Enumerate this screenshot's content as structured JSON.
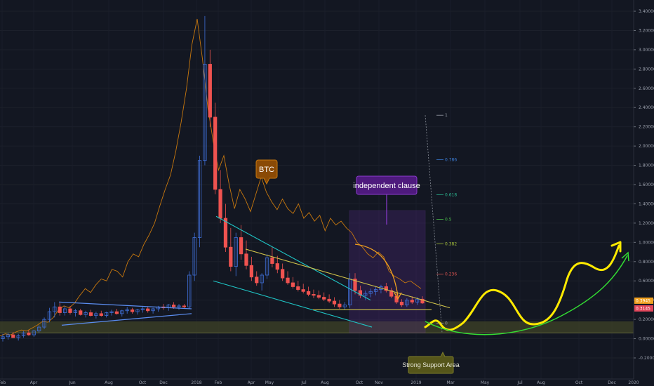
{
  "chart_data": {
    "type": "candlestick",
    "x_axis": {
      "ticks": [
        "Feb",
        "Apr",
        "Jun",
        "Aug",
        "Oct",
        "Dec",
        "2018",
        "Feb",
        "Apr",
        "May",
        "Jul",
        "Aug",
        "Oct",
        "Nov",
        "2019",
        "Mar",
        "May",
        "Jul",
        "Aug",
        "Oct",
        "Dec",
        "2020"
      ]
    },
    "y_axis": {
      "ticks": [
        "3.40000",
        "3.20000",
        "3.00000",
        "2.80000",
        "2.60000",
        "2.40000",
        "2.20000",
        "2.00000",
        "1.80000",
        "1.60000",
        "1.40000",
        "1.20000",
        "1.00000",
        "0.80000",
        "0.60000",
        "0.40000",
        "0.20000",
        "0.00000",
        "-0.20000"
      ],
      "range": [
        -0.24,
        3.45
      ],
      "price_badges": [
        {
          "label": "0.3945",
          "value": 0.3945,
          "color": "#f0a020"
        },
        {
          "label": "0.3145",
          "value": 0.3145,
          "color": "#e0455a"
        }
      ]
    },
    "fibonacci": {
      "levels": [
        {
          "label": "1",
          "ratio": 1,
          "color": "#9aa0aa"
        },
        {
          "label": "0.786",
          "ratio": 0.786,
          "color": "#3d7fd9"
        },
        {
          "label": "0.618",
          "ratio": 0.618,
          "color": "#2bb38e"
        },
        {
          "label": "0.5",
          "ratio": 0.5,
          "color": "#4cc04c"
        },
        {
          "label": "0.382",
          "ratio": 0.382,
          "color": "#a6c23a"
        },
        {
          "label": "0.236",
          "ratio": 0.236,
          "color": "#d9534f"
        },
        {
          "label": "0",
          "ratio": 0,
          "color": "#9aa0aa"
        }
      ],
      "price_range": [
        0.16,
        2.32
      ]
    },
    "annotations": [
      {
        "label": "BTC",
        "color": "#c8780e"
      },
      {
        "label": "independent clause",
        "color": "#7d2fb4"
      },
      {
        "label": "Strong Support Area",
        "color": "#6b6b1e"
      }
    ],
    "colors": {
      "background": "#131722",
      "up": "#3f6fd8",
      "down": "#ef5350",
      "btc_line": "#c8780e",
      "projection": "#ffea00",
      "arrow": "#33dd33",
      "support_band": "#3a3d26"
    },
    "candles": [
      {
        "o": 0.0,
        "h": 0.05,
        "l": -0.03,
        "c": 0.02
      },
      {
        "o": 0.02,
        "h": 0.06,
        "l": -0.01,
        "c": 0.04
      },
      {
        "o": 0.04,
        "h": 0.07,
        "l": 0.01,
        "c": 0.01
      },
      {
        "o": 0.01,
        "h": 0.05,
        "l": -0.02,
        "c": 0.03
      },
      {
        "o": 0.03,
        "h": 0.08,
        "l": 0.01,
        "c": 0.06
      },
      {
        "o": 0.06,
        "h": 0.09,
        "l": 0.03,
        "c": 0.04
      },
      {
        "o": 0.04,
        "h": 0.09,
        "l": 0.02,
        "c": 0.08
      },
      {
        "o": 0.08,
        "h": 0.14,
        "l": 0.06,
        "c": 0.12
      },
      {
        "o": 0.12,
        "h": 0.22,
        "l": 0.1,
        "c": 0.2
      },
      {
        "o": 0.2,
        "h": 0.32,
        "l": 0.17,
        "c": 0.28
      },
      {
        "o": 0.28,
        "h": 0.38,
        "l": 0.22,
        "c": 0.33
      },
      {
        "o": 0.33,
        "h": 0.37,
        "l": 0.24,
        "c": 0.27
      },
      {
        "o": 0.27,
        "h": 0.34,
        "l": 0.24,
        "c": 0.31
      },
      {
        "o": 0.31,
        "h": 0.34,
        "l": 0.25,
        "c": 0.27
      },
      {
        "o": 0.27,
        "h": 0.31,
        "l": 0.23,
        "c": 0.29
      },
      {
        "o": 0.29,
        "h": 0.31,
        "l": 0.24,
        "c": 0.25
      },
      {
        "o": 0.25,
        "h": 0.29,
        "l": 0.22,
        "c": 0.27
      },
      {
        "o": 0.27,
        "h": 0.3,
        "l": 0.23,
        "c": 0.24
      },
      {
        "o": 0.24,
        "h": 0.28,
        "l": 0.21,
        "c": 0.26
      },
      {
        "o": 0.26,
        "h": 0.29,
        "l": 0.23,
        "c": 0.24
      },
      {
        "o": 0.24,
        "h": 0.28,
        "l": 0.22,
        "c": 0.27
      },
      {
        "o": 0.27,
        "h": 0.3,
        "l": 0.24,
        "c": 0.28
      },
      {
        "o": 0.28,
        "h": 0.31,
        "l": 0.25,
        "c": 0.26
      },
      {
        "o": 0.26,
        "h": 0.3,
        "l": 0.23,
        "c": 0.29
      },
      {
        "o": 0.29,
        "h": 0.33,
        "l": 0.26,
        "c": 0.3
      },
      {
        "o": 0.3,
        "h": 0.32,
        "l": 0.26,
        "c": 0.28
      },
      {
        "o": 0.28,
        "h": 0.31,
        "l": 0.25,
        "c": 0.3
      },
      {
        "o": 0.3,
        "h": 0.33,
        "l": 0.27,
        "c": 0.31
      },
      {
        "o": 0.31,
        "h": 0.33,
        "l": 0.27,
        "c": 0.29
      },
      {
        "o": 0.29,
        "h": 0.32,
        "l": 0.26,
        "c": 0.31
      },
      {
        "o": 0.31,
        "h": 0.34,
        "l": 0.28,
        "c": 0.33
      },
      {
        "o": 0.33,
        "h": 0.36,
        "l": 0.3,
        "c": 0.32
      },
      {
        "o": 0.32,
        "h": 0.36,
        "l": 0.29,
        "c": 0.35
      },
      {
        "o": 0.35,
        "h": 0.38,
        "l": 0.31,
        "c": 0.33
      },
      {
        "o": 0.33,
        "h": 0.36,
        "l": 0.3,
        "c": 0.34
      },
      {
        "o": 0.34,
        "h": 0.36,
        "l": 0.31,
        "c": 0.33
      },
      {
        "o": 0.33,
        "h": 0.7,
        "l": 0.31,
        "c": 0.66
      },
      {
        "o": 0.66,
        "h": 1.1,
        "l": 0.6,
        "c": 1.05
      },
      {
        "o": 1.05,
        "h": 1.9,
        "l": 0.95,
        "c": 1.85
      },
      {
        "o": 1.85,
        "h": 3.35,
        "l": 1.8,
        "c": 2.85
      },
      {
        "o": 2.85,
        "h": 3.0,
        "l": 2.2,
        "c": 2.3
      },
      {
        "o": 2.3,
        "h": 2.45,
        "l": 1.5,
        "c": 1.55
      },
      {
        "o": 1.55,
        "h": 1.75,
        "l": 1.2,
        "c": 1.25
      },
      {
        "o": 1.25,
        "h": 1.4,
        "l": 0.9,
        "c": 0.95
      },
      {
        "o": 0.95,
        "h": 1.15,
        "l": 0.7,
        "c": 0.75
      },
      {
        "o": 0.75,
        "h": 1.1,
        "l": 0.65,
        "c": 1.05
      },
      {
        "o": 1.05,
        "h": 1.18,
        "l": 0.82,
        "c": 0.88
      },
      {
        "o": 0.88,
        "h": 1.02,
        "l": 0.72,
        "c": 0.76
      },
      {
        "o": 0.76,
        "h": 0.85,
        "l": 0.6,
        "c": 0.64
      },
      {
        "o": 0.64,
        "h": 0.7,
        "l": 0.55,
        "c": 0.58
      },
      {
        "o": 0.58,
        "h": 0.68,
        "l": 0.5,
        "c": 0.66
      },
      {
        "o": 0.66,
        "h": 0.88,
        "l": 0.62,
        "c": 0.84
      },
      {
        "o": 0.84,
        "h": 0.95,
        "l": 0.74,
        "c": 0.78
      },
      {
        "o": 0.78,
        "h": 0.86,
        "l": 0.68,
        "c": 0.72
      },
      {
        "o": 0.72,
        "h": 0.78,
        "l": 0.6,
        "c": 0.63
      },
      {
        "o": 0.63,
        "h": 0.7,
        "l": 0.56,
        "c": 0.58
      },
      {
        "o": 0.58,
        "h": 0.64,
        "l": 0.52,
        "c": 0.54
      },
      {
        "o": 0.54,
        "h": 0.6,
        "l": 0.49,
        "c": 0.51
      },
      {
        "o": 0.51,
        "h": 0.57,
        "l": 0.47,
        "c": 0.49
      },
      {
        "o": 0.49,
        "h": 0.54,
        "l": 0.44,
        "c": 0.46
      },
      {
        "o": 0.46,
        "h": 0.51,
        "l": 0.42,
        "c": 0.45
      },
      {
        "o": 0.45,
        "h": 0.5,
        "l": 0.41,
        "c": 0.43
      },
      {
        "o": 0.43,
        "h": 0.48,
        "l": 0.39,
        "c": 0.41
      },
      {
        "o": 0.41,
        "h": 0.46,
        "l": 0.37,
        "c": 0.39
      },
      {
        "o": 0.39,
        "h": 0.43,
        "l": 0.33,
        "c": 0.36
      },
      {
        "o": 0.36,
        "h": 0.4,
        "l": 0.31,
        "c": 0.33
      },
      {
        "o": 0.33,
        "h": 0.38,
        "l": 0.3,
        "c": 0.35
      },
      {
        "o": 0.35,
        "h": 0.68,
        "l": 0.32,
        "c": 0.62
      },
      {
        "o": 0.62,
        "h": 0.68,
        "l": 0.46,
        "c": 0.5
      },
      {
        "o": 0.5,
        "h": 0.55,
        "l": 0.42,
        "c": 0.45
      },
      {
        "o": 0.45,
        "h": 0.5,
        "l": 0.4,
        "c": 0.47
      },
      {
        "o": 0.47,
        "h": 0.52,
        "l": 0.43,
        "c": 0.49
      },
      {
        "o": 0.49,
        "h": 0.54,
        "l": 0.45,
        "c": 0.51
      },
      {
        "o": 0.51,
        "h": 0.56,
        "l": 0.47,
        "c": 0.54
      },
      {
        "o": 0.54,
        "h": 0.58,
        "l": 0.48,
        "c": 0.5
      },
      {
        "o": 0.5,
        "h": 0.53,
        "l": 0.42,
        "c": 0.44
      },
      {
        "o": 0.44,
        "h": 0.47,
        "l": 0.36,
        "c": 0.38
      },
      {
        "o": 0.38,
        "h": 0.41,
        "l": 0.33,
        "c": 0.35
      },
      {
        "o": 0.35,
        "h": 0.42,
        "l": 0.33,
        "c": 0.4
      },
      {
        "o": 0.4,
        "h": 0.44,
        "l": 0.36,
        "c": 0.38
      },
      {
        "o": 0.38,
        "h": 0.43,
        "l": 0.35,
        "c": 0.41
      },
      {
        "o": 0.41,
        "h": 0.44,
        "l": 0.36,
        "c": 0.37
      }
    ],
    "btc_overlay": [
      0.03,
      0.05,
      0.04,
      0.07,
      0.09,
      0.08,
      0.11,
      0.14,
      0.18,
      0.17,
      0.22,
      0.3,
      0.34,
      0.32,
      0.37,
      0.45,
      0.52,
      0.48,
      0.56,
      0.62,
      0.6,
      0.72,
      0.7,
      0.64,
      0.8,
      0.88,
      0.85,
      0.98,
      1.08,
      1.2,
      1.38,
      1.55,
      1.7,
      1.95,
      2.25,
      2.6,
      3.05,
      3.32,
      2.9,
      2.4,
      2.05,
      1.75,
      1.9,
      1.6,
      1.35,
      1.55,
      1.45,
      1.32,
      1.5,
      1.68,
      1.52,
      1.42,
      1.34,
      1.45,
      1.35,
      1.3,
      1.4,
      1.25,
      1.31,
      1.22,
      1.28,
      1.12,
      1.25,
      1.18,
      1.22,
      1.15,
      1.1,
      1.0,
      0.95,
      0.88,
      0.84,
      0.9,
      0.85,
      0.7,
      0.65,
      0.62,
      0.58,
      0.6,
      0.56,
      0.52
    ]
  }
}
